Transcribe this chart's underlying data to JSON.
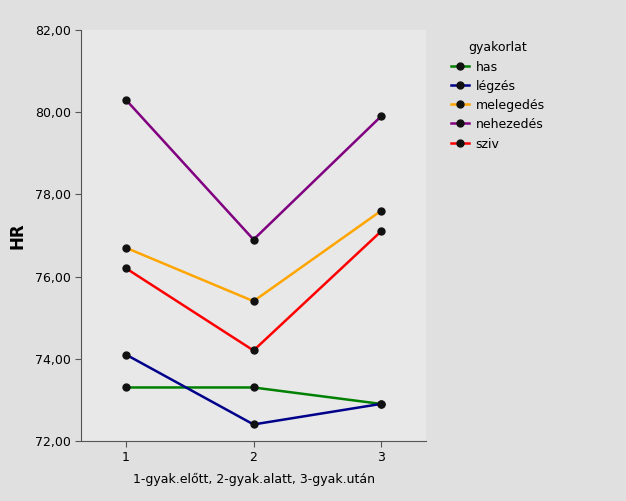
{
  "series": {
    "has": {
      "values": [
        73.3,
        73.3,
        72.9
      ],
      "color": "#008000",
      "label": "has"
    },
    "legzes": {
      "values": [
        74.1,
        72.4,
        72.9
      ],
      "color": "#00008B",
      "label": "légzés"
    },
    "melegedes": {
      "values": [
        76.7,
        75.4,
        77.6
      ],
      "color": "#FFA500",
      "label": "melegedés"
    },
    "nehezedes": {
      "values": [
        80.3,
        76.9,
        79.9
      ],
      "color": "#800080",
      "label": "nehezedés"
    },
    "sziv": {
      "values": [
        76.2,
        74.2,
        77.1
      ],
      "color": "#FF0000",
      "label": "sziv"
    }
  },
  "x_values": [
    1,
    2,
    3
  ],
  "xlabel": "1-gyak.előtt, 2-gyak.alatt, 3-gyak.után",
  "ylabel": "HR",
  "legend_title": "gyakorlat",
  "ylim": [
    72.0,
    82.0
  ],
  "yticks": [
    72.0,
    74.0,
    76.0,
    78.0,
    80.0,
    82.0
  ],
  "ytick_labels": [
    "72,00",
    "74,00",
    "76,00",
    "78,00",
    "80,00",
    "82,00"
  ],
  "xticks": [
    1,
    2,
    3
  ],
  "plot_bg_color": "#E8E8E8",
  "fig_bg_color": "#E0E0E0",
  "marker": "o",
  "marker_color": "#111111",
  "marker_size": 5,
  "linewidth": 1.8
}
